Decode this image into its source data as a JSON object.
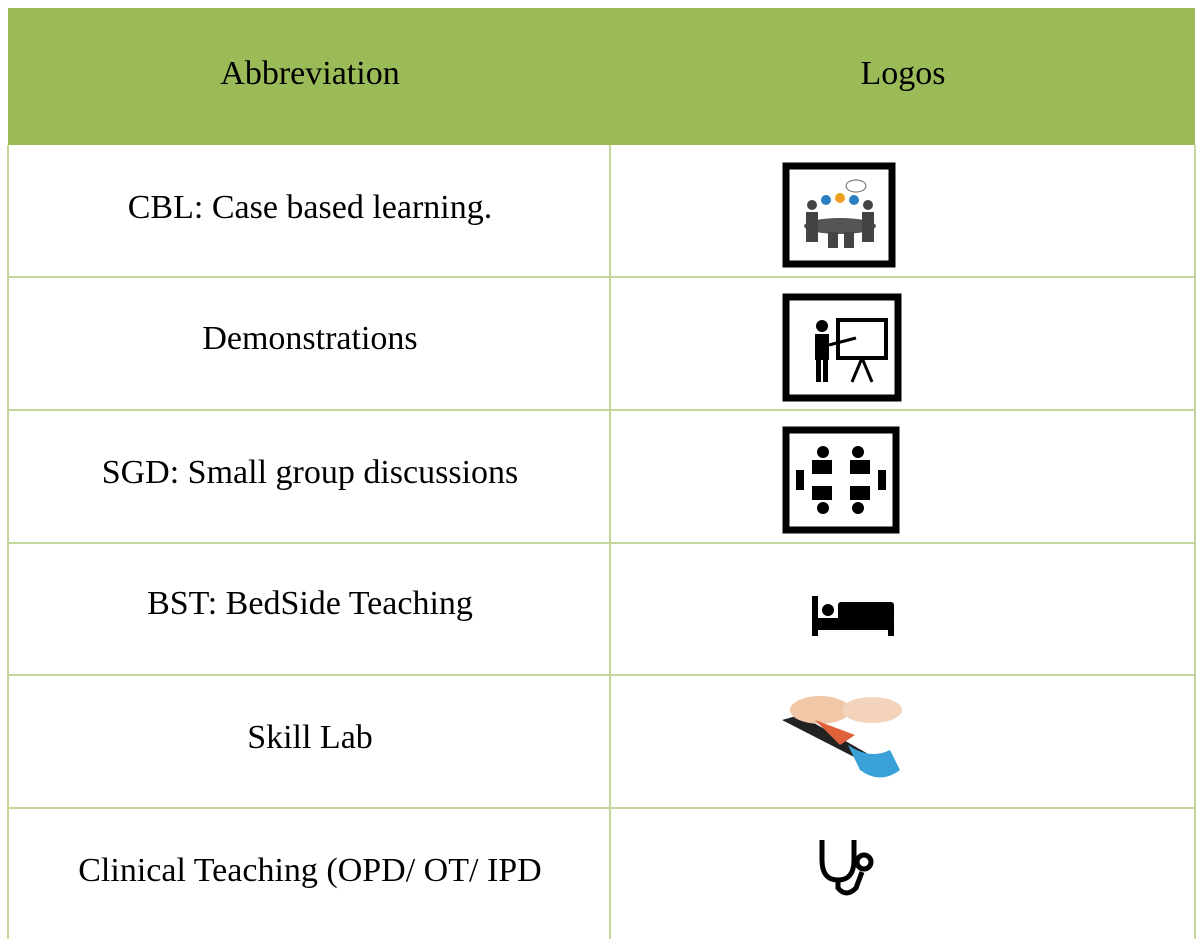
{
  "table": {
    "header": [
      "Abbreviation",
      "Logos"
    ],
    "rows": [
      "CBL: Case based learning.",
      "Demonstrations",
      "SGD: Small group discussions",
      "BST: BedSide Teaching",
      "Skill Lab",
      "Clinical Teaching (OPD/ OT/ IPD"
    ]
  }
}
